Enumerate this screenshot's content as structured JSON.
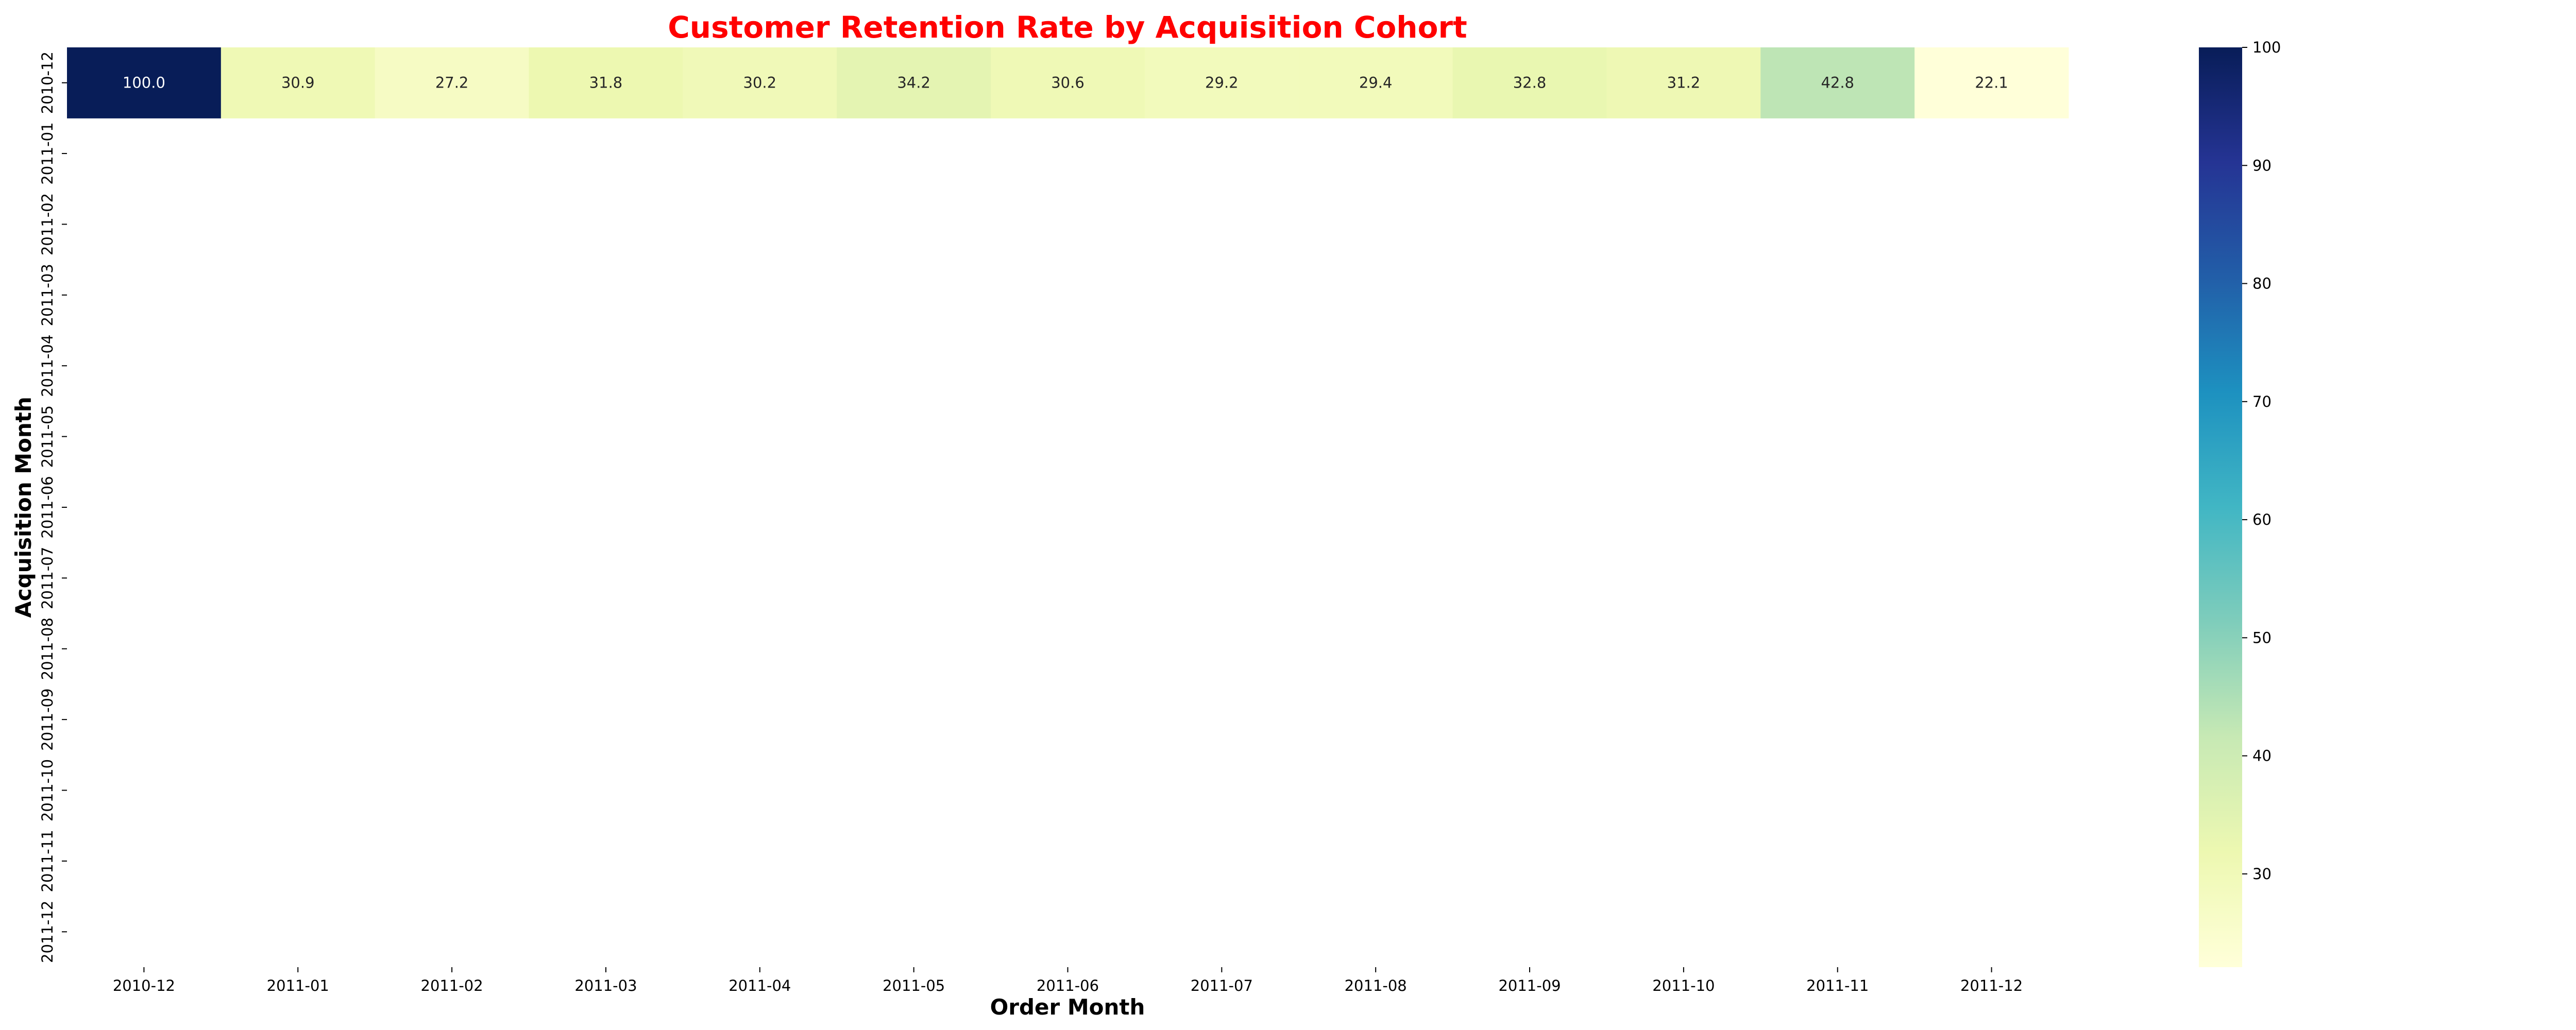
{
  "chart_data": {
    "type": "heatmap",
    "title": "Customer Retention Rate by Acquisition Cohort",
    "xlabel": "Order Month",
    "ylabel": "Acquisition Month",
    "x_categories": [
      "2010-12",
      "2011-01",
      "2011-02",
      "2011-03",
      "2011-04",
      "2011-05",
      "2011-06",
      "2011-07",
      "2011-08",
      "2011-09",
      "2011-10",
      "2011-11",
      "2011-12"
    ],
    "y_categories": [
      "2010-12",
      "2011-01",
      "2011-02",
      "2011-03",
      "2011-04",
      "2011-05",
      "2011-06",
      "2011-07",
      "2011-08",
      "2011-09",
      "2011-10",
      "2011-11",
      "2011-12"
    ],
    "values": [
      [
        100.0,
        30.9,
        27.2,
        31.8,
        30.2,
        34.2,
        30.6,
        29.2,
        29.4,
        32.8,
        31.2,
        42.8,
        22.1
      ],
      [
        null,
        null,
        null,
        null,
        null,
        null,
        null,
        null,
        null,
        null,
        null,
        null,
        null
      ],
      [
        null,
        null,
        null,
        null,
        null,
        null,
        null,
        null,
        null,
        null,
        null,
        null,
        null
      ],
      [
        null,
        null,
        null,
        null,
        null,
        null,
        null,
        null,
        null,
        null,
        null,
        null,
        null
      ],
      [
        null,
        null,
        null,
        null,
        null,
        null,
        null,
        null,
        null,
        null,
        null,
        null,
        null
      ],
      [
        null,
        null,
        null,
        null,
        null,
        null,
        null,
        null,
        null,
        null,
        null,
        null,
        null
      ],
      [
        null,
        null,
        null,
        null,
        null,
        null,
        null,
        null,
        null,
        null,
        null,
        null,
        null
      ],
      [
        null,
        null,
        null,
        null,
        null,
        null,
        null,
        null,
        null,
        null,
        null,
        null,
        null
      ],
      [
        null,
        null,
        null,
        null,
        null,
        null,
        null,
        null,
        null,
        null,
        null,
        null,
        null
      ],
      [
        null,
        null,
        null,
        null,
        null,
        null,
        null,
        null,
        null,
        null,
        null,
        null,
        null
      ],
      [
        null,
        null,
        null,
        null,
        null,
        null,
        null,
        null,
        null,
        null,
        null,
        null,
        null
      ],
      [
        null,
        null,
        null,
        null,
        null,
        null,
        null,
        null,
        null,
        null,
        null,
        null,
        null
      ],
      [
        null,
        null,
        null,
        null,
        null,
        null,
        null,
        null,
        null,
        null,
        null,
        null,
        null
      ]
    ],
    "colormap": "YlGnBu",
    "color_range": [
      22.1,
      100
    ],
    "colorbar_ticks": [
      30,
      40,
      50,
      60,
      70,
      80,
      90,
      100
    ],
    "grid": false,
    "legend": "colorbar-right"
  }
}
